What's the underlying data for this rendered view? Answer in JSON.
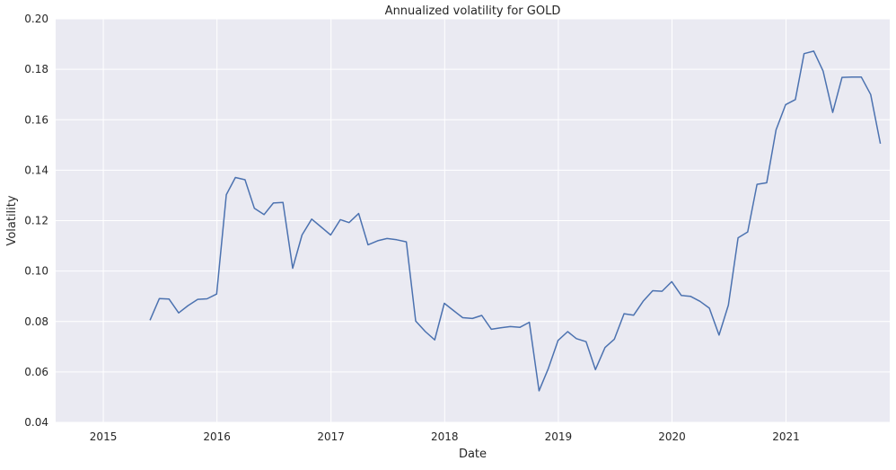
{
  "chart_data": {
    "type": "line",
    "title": "Annualized volatility for GOLD",
    "xlabel": "Date",
    "ylabel": "Volatility",
    "xlim": [
      "2014-08-01",
      "2021-11-30"
    ],
    "ylim": [
      0.04,
      0.2
    ],
    "x_ticks": [
      "2015",
      "2016",
      "2017",
      "2018",
      "2019",
      "2020",
      "2021"
    ],
    "y_ticks": [
      "0.04",
      "0.06",
      "0.08",
      "0.10",
      "0.12",
      "0.14",
      "0.16",
      "0.18",
      "0.20"
    ],
    "grid": true,
    "background": "#eaeaf2",
    "grid_color": "#ffffff",
    "line_color": "#4c72b0",
    "series": [
      {
        "x": [
          "2015-05-31",
          "2015-06-30",
          "2015-07-31",
          "2015-08-31",
          "2015-09-30",
          "2015-10-31",
          "2015-11-30",
          "2015-12-31",
          "2016-01-31",
          "2016-02-29",
          "2016-03-31",
          "2016-04-30",
          "2016-05-31",
          "2016-06-30",
          "2016-07-31",
          "2016-08-31",
          "2016-09-30",
          "2016-10-31",
          "2016-11-30",
          "2016-12-31",
          "2017-01-31",
          "2017-02-28",
          "2017-03-31",
          "2017-04-30",
          "2017-05-31",
          "2017-06-30",
          "2017-07-31",
          "2017-08-31",
          "2017-09-30",
          "2017-10-31",
          "2017-11-30",
          "2017-12-31",
          "2018-01-31",
          "2018-02-28",
          "2018-03-31",
          "2018-04-30",
          "2018-05-31",
          "2018-06-30",
          "2018-07-31",
          "2018-08-31",
          "2018-09-30",
          "2018-10-31",
          "2018-11-30",
          "2018-12-31",
          "2019-01-31",
          "2019-02-28",
          "2019-03-31",
          "2019-04-30",
          "2019-05-31",
          "2019-06-30",
          "2019-07-31",
          "2019-08-31",
          "2019-09-30",
          "2019-10-31",
          "2019-11-30",
          "2019-12-31",
          "2020-01-31",
          "2020-02-29",
          "2020-03-31",
          "2020-04-30",
          "2020-05-31",
          "2020-06-30",
          "2020-07-31",
          "2020-08-31",
          "2020-09-30",
          "2020-10-31",
          "2020-11-30",
          "2020-12-31",
          "2021-01-31",
          "2021-02-28",
          "2021-03-31",
          "2021-04-30",
          "2021-05-31",
          "2021-06-30",
          "2021-07-31",
          "2021-08-31",
          "2021-09-30",
          "2021-10-31"
        ],
        "values": [
          0.0805,
          0.0891,
          0.0889,
          0.0834,
          0.0863,
          0.0888,
          0.089,
          0.0909,
          0.1303,
          0.1371,
          0.1362,
          0.1249,
          0.1224,
          0.127,
          0.1272,
          0.1011,
          0.1143,
          0.1206,
          0.1175,
          0.1143,
          0.1204,
          0.1192,
          0.1228,
          0.1104,
          0.112,
          0.1129,
          0.1124,
          0.1116,
          0.0802,
          0.076,
          0.0727,
          0.0872,
          0.0842,
          0.0815,
          0.0812,
          0.0824,
          0.0769,
          0.0775,
          0.078,
          0.0777,
          0.0797,
          0.0525,
          0.0614,
          0.0725,
          0.076,
          0.0732,
          0.072,
          0.0609,
          0.0697,
          0.073,
          0.0831,
          0.0825,
          0.088,
          0.0922,
          0.092,
          0.0958,
          0.0903,
          0.09,
          0.088,
          0.0853,
          0.0746,
          0.0865,
          0.1132,
          0.1155,
          0.1344,
          0.135,
          0.156,
          0.166,
          0.168,
          0.1862,
          0.1872,
          0.1793,
          0.1629,
          0.1768,
          0.1769,
          0.1769,
          0.17,
          0.1505
        ]
      }
    ]
  }
}
